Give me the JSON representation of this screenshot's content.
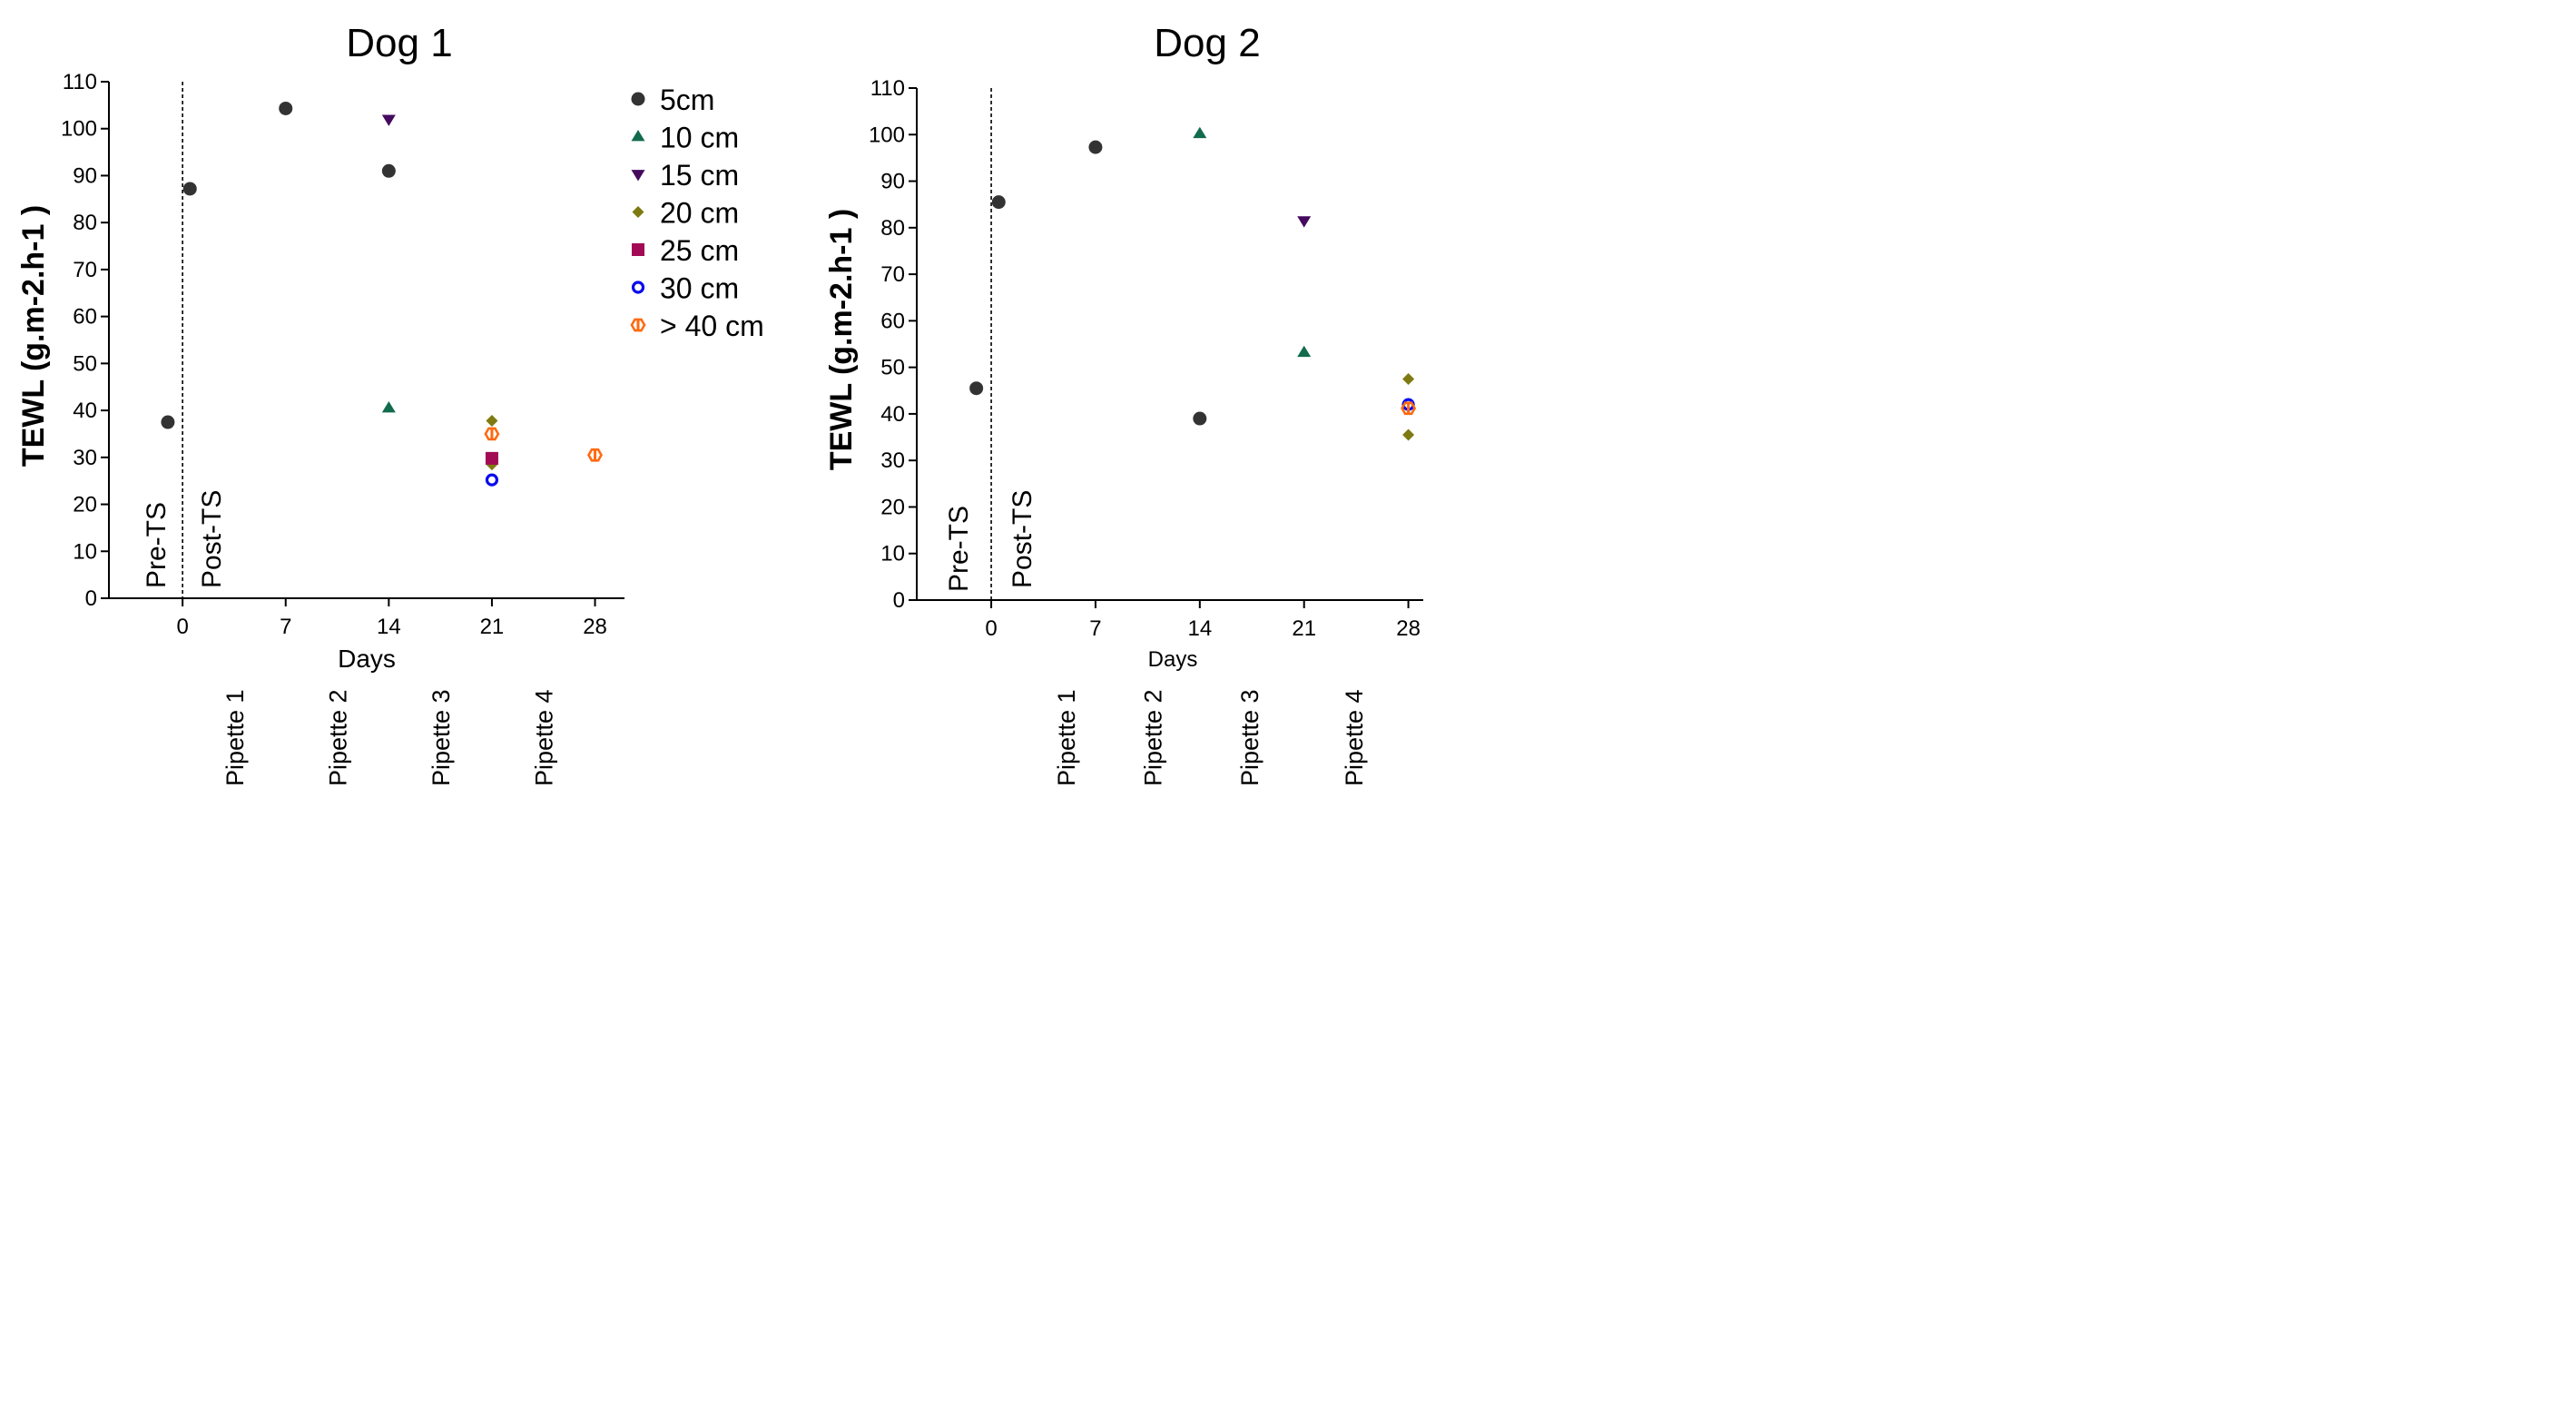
{
  "colors": {
    "5cm": "#333333",
    "10 cm": "#116b4c",
    "15 cm": "#450a5e",
    "20 cm": "#7e7a12",
    "25 cm": "#a20a55",
    "30 cm": "#0a0aee",
    "> 40 cm": "#ff6a10"
  },
  "legend": {
    "items": [
      {
        "label": "5cm",
        "marker": "circle"
      },
      {
        "label": "10 cm",
        "marker": "triangle-up"
      },
      {
        "label": "15 cm",
        "marker": "triangle-down"
      },
      {
        "label": "20 cm",
        "marker": "diamond"
      },
      {
        "label": "25 cm",
        "marker": "square"
      },
      {
        "label": "30 cm",
        "marker": "open-circle"
      },
      {
        "label": "> 40 cm",
        "marker": "hexagon"
      }
    ]
  },
  "chart_data": [
    {
      "type": "scatter",
      "title": "Dog 1",
      "xlabel": "Days",
      "ylabel": "TEWL (g.m-2.h-1 )",
      "xlim": [
        -5,
        30
      ],
      "ylim": [
        0,
        110
      ],
      "x_ticks": [
        0,
        7,
        14,
        21,
        28
      ],
      "y_ticks": [
        0,
        10,
        20,
        30,
        40,
        50,
        60,
        70,
        80,
        90,
        100,
        110
      ],
      "vline_x": 0,
      "phase_labels": [
        "Pre-TS",
        "Post-TS"
      ],
      "pipettes": [
        {
          "label": "Pipette 1",
          "x": 3.5
        },
        {
          "label": "Pipette 2",
          "x": 10.5
        },
        {
          "label": "Pipette 3",
          "x": 17.5
        },
        {
          "label": "Pipette 4",
          "x": 24.5
        }
      ],
      "series": [
        {
          "name": "5cm",
          "points": [
            [
              -1,
              37.5
            ],
            [
              0.5,
              87.2
            ],
            [
              7,
              104.3
            ],
            [
              14,
              91
            ]
          ]
        },
        {
          "name": "10 cm",
          "points": [
            [
              14,
              40.5
            ]
          ]
        },
        {
          "name": "15 cm",
          "points": [
            [
              14,
              102
            ]
          ]
        },
        {
          "name": "20 cm",
          "points": [
            [
              21,
              37.8
            ],
            [
              21,
              28.5
            ]
          ]
        },
        {
          "name": "25 cm",
          "points": [
            [
              21,
              29.8
            ]
          ]
        },
        {
          "name": "30 cm",
          "points": [
            [
              21,
              25.2
            ]
          ]
        },
        {
          "name": "> 40 cm",
          "points": [
            [
              21,
              35
            ],
            [
              28,
              30.5
            ]
          ]
        }
      ]
    },
    {
      "type": "scatter",
      "title": "Dog 2",
      "xlabel": "Days",
      "ylabel": "TEWL (g.m-2.h-1 )",
      "xlim": [
        -5,
        29
      ],
      "ylim": [
        0,
        110
      ],
      "x_ticks": [
        0,
        7,
        14,
        21,
        28
      ],
      "y_ticks": [
        0,
        10,
        20,
        30,
        40,
        50,
        60,
        70,
        80,
        90,
        100,
        110
      ],
      "vline_x": 0,
      "phase_labels": [
        "Pre-TS",
        "Post-TS"
      ],
      "pipettes": [
        {
          "label": "Pipette 1",
          "x": 5
        },
        {
          "label": "Pipette 2",
          "x": 10.8
        },
        {
          "label": "Pipette 3",
          "x": 17.3
        },
        {
          "label": "Pipette 4",
          "x": 24.3
        }
      ],
      "series": [
        {
          "name": "5cm",
          "points": [
            [
              -1,
              45.5
            ],
            [
              0.5,
              85.5
            ],
            [
              7,
              97.3
            ],
            [
              14,
              39
            ]
          ]
        },
        {
          "name": "10 cm",
          "points": [
            [
              14,
              100.2
            ],
            [
              21,
              53.2
            ]
          ]
        },
        {
          "name": "15 cm",
          "points": [
            [
              21,
              81.5
            ]
          ]
        },
        {
          "name": "20 cm",
          "points": [
            [
              28,
              47.5
            ],
            [
              28,
              35.5
            ]
          ]
        },
        {
          "name": "30 cm",
          "points": [
            [
              28,
              42
            ]
          ]
        },
        {
          "name": "> 40 cm",
          "points": [
            [
              28,
              41.2
            ]
          ]
        }
      ]
    }
  ]
}
